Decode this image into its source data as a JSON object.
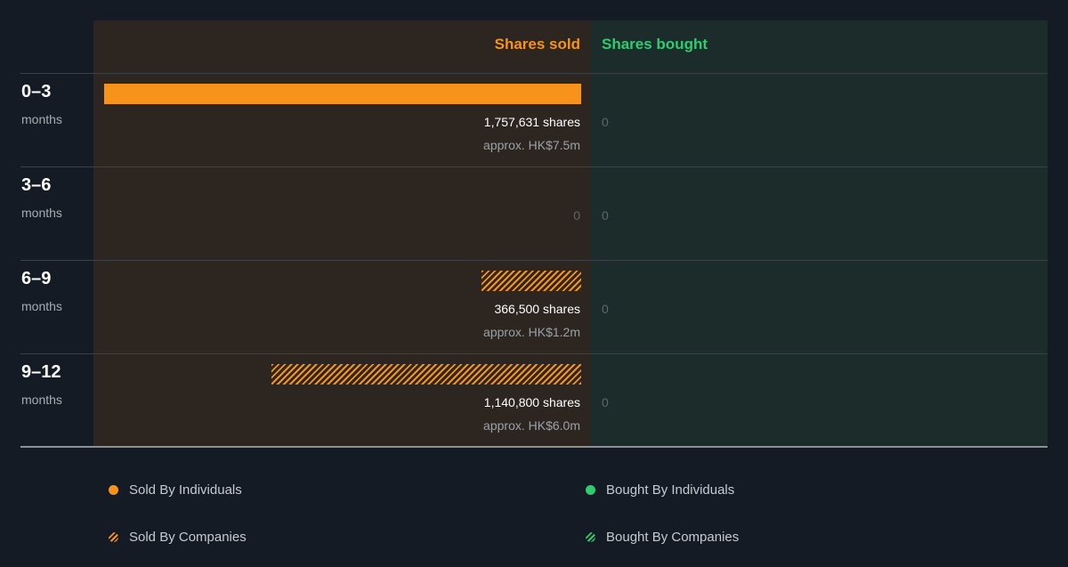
{
  "header": {
    "sold_label": "Shares sold",
    "bought_label": "Shares bought"
  },
  "colors": {
    "sold": "#f7931a",
    "bought": "#2ecc71",
    "sold_bg": "#2d2620",
    "bought_bg": "#1b2c2b"
  },
  "rows": [
    {
      "period": "0–3",
      "unit": "months",
      "sold_shares": "1,757,631 shares",
      "sold_approx": "approx. HK$7.5m",
      "sold_zero": "",
      "bought": "0"
    },
    {
      "period": "3–6",
      "unit": "months",
      "sold_shares": "",
      "sold_approx": "",
      "sold_zero": "0",
      "bought": "0"
    },
    {
      "period": "6–9",
      "unit": "months",
      "sold_shares": "366,500 shares",
      "sold_approx": "approx. HK$1.2m",
      "sold_zero": "",
      "bought": "0"
    },
    {
      "period": "9–12",
      "unit": "months",
      "sold_shares": "1,140,800 shares",
      "sold_approx": "approx. HK$6.0m",
      "sold_zero": "",
      "bought": "0"
    }
  ],
  "legend": {
    "sold_individuals": "Sold By Individuals",
    "sold_companies": "Sold By Companies",
    "bought_individuals": "Bought By Individuals",
    "bought_companies": "Bought By Companies"
  },
  "chart_data": {
    "type": "bar",
    "orientation": "horizontal",
    "categories": [
      "0–3 months",
      "3–6 months",
      "6–9 months",
      "9–12 months"
    ],
    "series": [
      {
        "name": "Sold By Individuals",
        "values": [
          1757631,
          0,
          0,
          0
        ]
      },
      {
        "name": "Sold By Companies",
        "values": [
          0,
          0,
          366500,
          1140800
        ]
      },
      {
        "name": "Bought By Individuals",
        "values": [
          0,
          0,
          0,
          0
        ]
      },
      {
        "name": "Bought By Companies",
        "values": [
          0,
          0,
          0,
          0
        ]
      }
    ],
    "approx_values": [
      "approx. HK$7.5m",
      "",
      "approx. HK$1.2m",
      "approx. HK$6.0m"
    ],
    "xlim": [
      0,
      1757631
    ],
    "legend_position": "bottom"
  }
}
